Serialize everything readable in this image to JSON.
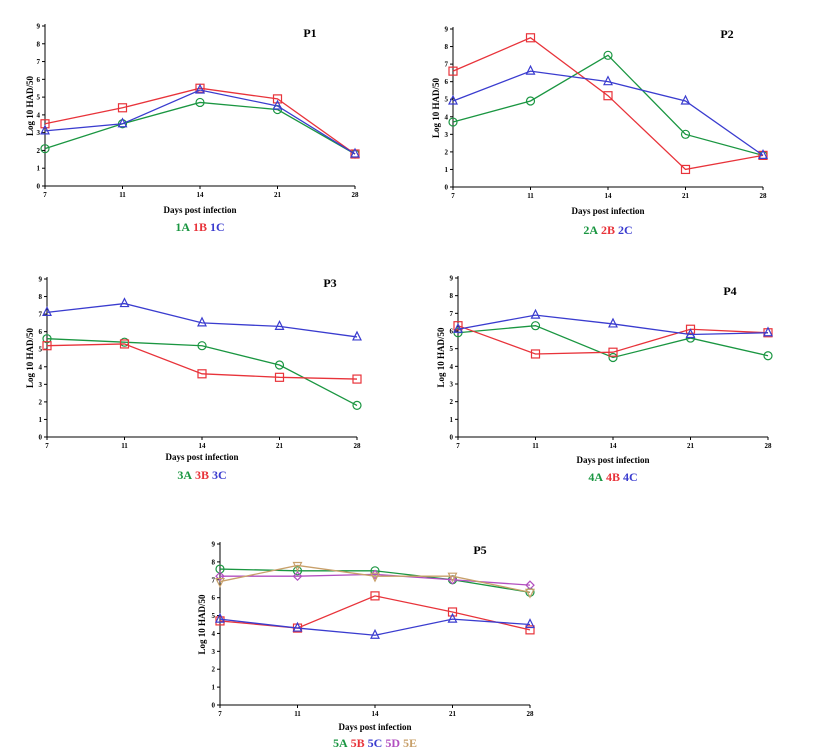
{
  "chart_data": [
    {
      "type": "line",
      "title": "P1",
      "xlabel": "Days post infection",
      "ylabel": "Log 10 HAD/50",
      "x": [
        7,
        11,
        14,
        21,
        28
      ],
      "ylim": [
        0,
        9
      ],
      "yticks": [
        "0",
        "1",
        "2",
        "3",
        "4",
        "5",
        "6",
        "7",
        "8",
        "9"
      ],
      "xticks": [
        "7",
        "11",
        "14",
        "21",
        "28"
      ],
      "legend_position": "bottom-center",
      "series": [
        {
          "name": "1A",
          "color": "#1a9641",
          "marker": "circle",
          "values": [
            2.1,
            3.5,
            4.7,
            4.3,
            1.8
          ]
        },
        {
          "name": "1B",
          "color": "#e8333a",
          "marker": "square",
          "values": [
            3.5,
            4.4,
            5.5,
            4.9,
            1.8
          ]
        },
        {
          "name": "1C",
          "color": "#3a3ccf",
          "marker": "triangle",
          "values": [
            3.1,
            3.5,
            5.4,
            4.5,
            1.8
          ]
        }
      ]
    },
    {
      "type": "line",
      "title": "P2",
      "xlabel": "Days post infection",
      "ylabel": "Log 10 HAD/50",
      "x": [
        7,
        11,
        14,
        21,
        28
      ],
      "ylim": [
        0,
        9
      ],
      "yticks": [
        "0",
        "1",
        "2",
        "3",
        "4",
        "5",
        "6",
        "7",
        "8",
        "9"
      ],
      "xticks": [
        "7",
        "11",
        "14",
        "21",
        "28"
      ],
      "legend_position": "bottom-center",
      "series": [
        {
          "name": "2A",
          "color": "#1a9641",
          "marker": "circle",
          "values": [
            3.7,
            4.9,
            7.5,
            3.0,
            1.8
          ]
        },
        {
          "name": "2B",
          "color": "#e8333a",
          "marker": "square",
          "values": [
            6.6,
            8.5,
            5.2,
            1.0,
            1.8
          ]
        },
        {
          "name": "2C",
          "color": "#3a3ccf",
          "marker": "triangle",
          "values": [
            4.9,
            6.6,
            6.0,
            4.9,
            1.8
          ]
        }
      ]
    },
    {
      "type": "line",
      "title": "P3",
      "xlabel": "Days post infection",
      "ylabel": "Log 10 HAD/50",
      "x": [
        7,
        11,
        14,
        21,
        28
      ],
      "ylim": [
        0,
        9
      ],
      "yticks": [
        "0",
        "1",
        "2",
        "3",
        "4",
        "5",
        "6",
        "7",
        "8",
        "9"
      ],
      "xticks": [
        "7",
        "11",
        "14",
        "21",
        "28"
      ],
      "legend_position": "bottom-center",
      "series": [
        {
          "name": "3A",
          "color": "#1a9641",
          "marker": "circle",
          "values": [
            5.6,
            5.4,
            5.2,
            4.1,
            1.8
          ]
        },
        {
          "name": "3B",
          "color": "#e8333a",
          "marker": "square",
          "values": [
            5.2,
            5.3,
            3.6,
            3.4,
            3.3
          ]
        },
        {
          "name": "3C",
          "color": "#3a3ccf",
          "marker": "triangle",
          "values": [
            7.1,
            7.6,
            6.5,
            6.3,
            5.7
          ]
        }
      ]
    },
    {
      "type": "line",
      "title": "P4",
      "xlabel": "Days post infection",
      "ylabel": "Log 10 HAD/50",
      "x": [
        7,
        11,
        14,
        21,
        28
      ],
      "ylim": [
        0,
        9
      ],
      "yticks": [
        "0",
        "1",
        "2",
        "3",
        "4",
        "5",
        "6",
        "7",
        "8",
        "9"
      ],
      "xticks": [
        "7",
        "11",
        "14",
        "21",
        "28"
      ],
      "legend_position": "bottom-center",
      "series": [
        {
          "name": "4A",
          "color": "#1a9641",
          "marker": "circle",
          "values": [
            5.9,
            6.3,
            4.5,
            5.6,
            4.6
          ]
        },
        {
          "name": "4B",
          "color": "#e8333a",
          "marker": "square",
          "values": [
            6.3,
            4.7,
            4.8,
            6.1,
            5.9
          ]
        },
        {
          "name": "4C",
          "color": "#3a3ccf",
          "marker": "triangle",
          "values": [
            6.1,
            6.9,
            6.4,
            5.8,
            5.9
          ]
        }
      ]
    },
    {
      "type": "line",
      "title": "P5",
      "xlabel": "Days post infection",
      "ylabel": "Log 10 HAD/50",
      "x": [
        7,
        11,
        14,
        21,
        28
      ],
      "ylim": [
        0,
        9
      ],
      "yticks": [
        "0",
        "1",
        "2",
        "3",
        "4",
        "5",
        "6",
        "7",
        "8",
        "9"
      ],
      "xticks": [
        "7",
        "11",
        "14",
        "21",
        "28"
      ],
      "legend_position": "bottom-center",
      "series": [
        {
          "name": "5A",
          "color": "#1a9641",
          "marker": "circle",
          "values": [
            7.6,
            7.5,
            7.5,
            7.0,
            6.3
          ]
        },
        {
          "name": "5B",
          "color": "#e8333a",
          "marker": "square",
          "values": [
            4.7,
            4.3,
            6.1,
            5.2,
            4.2
          ]
        },
        {
          "name": "5C",
          "color": "#3a3ccf",
          "marker": "triangle",
          "values": [
            4.8,
            4.3,
            3.9,
            4.8,
            4.5
          ]
        },
        {
          "name": "5D",
          "color": "#b24fc0",
          "marker": "diamond",
          "values": [
            7.2,
            7.2,
            7.3,
            7.0,
            6.7
          ]
        },
        {
          "name": "5E",
          "color": "#c8a06a",
          "marker": "triangle-down",
          "values": [
            6.9,
            7.8,
            7.2,
            7.2,
            6.3
          ]
        }
      ]
    }
  ]
}
